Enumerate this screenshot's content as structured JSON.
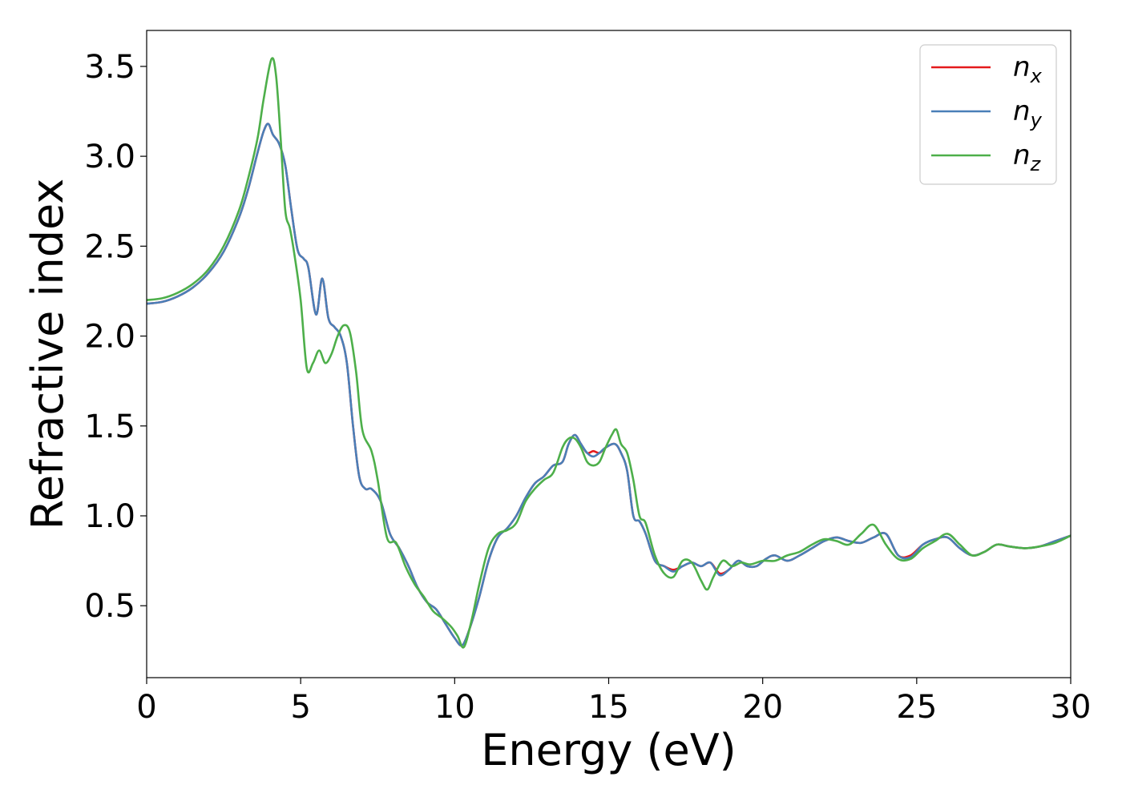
{
  "chart_data": {
    "type": "line",
    "title": "",
    "xlabel": "Energy (eV)",
    "ylabel": "Refractive index",
    "xlim": [
      0,
      30
    ],
    "ylim": [
      0.1,
      3.7
    ],
    "xticks": [
      0,
      5,
      10,
      15,
      20,
      25,
      30
    ],
    "yticks": [
      0.5,
      1.0,
      1.5,
      2.0,
      2.5,
      3.0,
      3.5
    ],
    "xtick_labels": [
      "0",
      "5",
      "10",
      "15",
      "20",
      "25",
      "30"
    ],
    "ytick_labels": [
      "0.5",
      "1.0",
      "1.5",
      "2.0",
      "2.5",
      "3.0",
      "3.5"
    ],
    "grid": false,
    "legend_position": "top-right",
    "series": [
      {
        "base": "n",
        "sub": "x",
        "color": "#e41a1c",
        "x": [
          0,
          0.5,
          1,
          1.5,
          2,
          2.5,
          3,
          3.3,
          3.6,
          3.8,
          3.95,
          4.1,
          4.3,
          4.5,
          4.7,
          4.9,
          5.1,
          5.25,
          5.5,
          5.7,
          5.9,
          6.1,
          6.3,
          6.5,
          6.7,
          6.9,
          7.1,
          7.3,
          7.6,
          7.9,
          8.2,
          8.5,
          8.8,
          9.1,
          9.4,
          9.7,
          10.0,
          10.25,
          10.5,
          10.8,
          11.1,
          11.4,
          11.7,
          12.0,
          12.3,
          12.6,
          12.9,
          13.2,
          13.5,
          13.7,
          13.9,
          14.1,
          14.3,
          14.5,
          14.7,
          14.9,
          15.2,
          15.4,
          15.6,
          15.8,
          16.0,
          16.2,
          16.5,
          16.8,
          17.1,
          17.4,
          17.7,
          18.0,
          18.3,
          18.6,
          18.9,
          19.2,
          19.5,
          19.8,
          20.1,
          20.4,
          20.8,
          21.2,
          21.6,
          22.0,
          22.4,
          22.8,
          23.2,
          23.6,
          24.0,
          24.4,
          24.8,
          25.2,
          25.6,
          26.0,
          26.4,
          26.8,
          27.2,
          27.6,
          28.0,
          28.5,
          29.0,
          29.5,
          30.0
        ],
        "y": [
          2.18,
          2.19,
          2.22,
          2.27,
          2.35,
          2.47,
          2.66,
          2.82,
          3.02,
          3.14,
          3.18,
          3.12,
          3.07,
          2.95,
          2.7,
          2.48,
          2.43,
          2.38,
          2.12,
          2.32,
          2.1,
          2.05,
          2.0,
          1.85,
          1.5,
          1.22,
          1.15,
          1.15,
          1.08,
          0.9,
          0.82,
          0.72,
          0.6,
          0.52,
          0.48,
          0.4,
          0.32,
          0.28,
          0.38,
          0.55,
          0.75,
          0.88,
          0.93,
          1.0,
          1.1,
          1.18,
          1.22,
          1.28,
          1.3,
          1.4,
          1.45,
          1.4,
          1.35,
          1.36,
          1.35,
          1.38,
          1.4,
          1.35,
          1.25,
          1.0,
          0.97,
          0.9,
          0.75,
          0.72,
          0.7,
          0.72,
          0.74,
          0.72,
          0.74,
          0.68,
          0.7,
          0.75,
          0.72,
          0.72,
          0.76,
          0.78,
          0.75,
          0.78,
          0.82,
          0.86,
          0.88,
          0.86,
          0.85,
          0.88,
          0.9,
          0.78,
          0.78,
          0.84,
          0.87,
          0.88,
          0.82,
          0.78,
          0.8,
          0.84,
          0.83,
          0.82,
          0.83,
          0.86,
          0.89
        ]
      },
      {
        "base": "n",
        "sub": "y",
        "color": "#4a7fb8",
        "x": [
          0,
          0.5,
          1,
          1.5,
          2,
          2.5,
          3,
          3.3,
          3.6,
          3.8,
          3.95,
          4.1,
          4.3,
          4.5,
          4.7,
          4.9,
          5.1,
          5.25,
          5.5,
          5.7,
          5.9,
          6.1,
          6.3,
          6.5,
          6.7,
          6.9,
          7.1,
          7.3,
          7.6,
          7.9,
          8.2,
          8.5,
          8.8,
          9.1,
          9.4,
          9.7,
          10.0,
          10.25,
          10.5,
          10.8,
          11.1,
          11.4,
          11.7,
          12.0,
          12.3,
          12.6,
          12.9,
          13.2,
          13.5,
          13.7,
          13.9,
          14.1,
          14.3,
          14.5,
          14.7,
          14.9,
          15.2,
          15.4,
          15.6,
          15.8,
          16.0,
          16.2,
          16.5,
          16.8,
          17.1,
          17.4,
          17.7,
          18.0,
          18.3,
          18.6,
          18.9,
          19.2,
          19.5,
          19.8,
          20.1,
          20.4,
          20.8,
          21.2,
          21.6,
          22.0,
          22.4,
          22.8,
          23.2,
          23.6,
          24.0,
          24.4,
          24.8,
          25.2,
          25.6,
          26.0,
          26.4,
          26.8,
          27.2,
          27.6,
          28.0,
          28.5,
          29.0,
          29.5,
          30.0
        ],
        "y": [
          2.18,
          2.19,
          2.22,
          2.27,
          2.35,
          2.47,
          2.66,
          2.82,
          3.02,
          3.14,
          3.18,
          3.12,
          3.07,
          2.95,
          2.7,
          2.48,
          2.43,
          2.38,
          2.12,
          2.32,
          2.1,
          2.05,
          2.0,
          1.85,
          1.5,
          1.22,
          1.15,
          1.15,
          1.08,
          0.9,
          0.82,
          0.72,
          0.6,
          0.52,
          0.48,
          0.4,
          0.32,
          0.28,
          0.38,
          0.55,
          0.75,
          0.88,
          0.93,
          1.0,
          1.1,
          1.18,
          1.22,
          1.28,
          1.3,
          1.4,
          1.45,
          1.4,
          1.35,
          1.33,
          1.35,
          1.38,
          1.4,
          1.35,
          1.25,
          1.0,
          0.97,
          0.9,
          0.75,
          0.72,
          0.69,
          0.72,
          0.74,
          0.72,
          0.74,
          0.67,
          0.7,
          0.75,
          0.72,
          0.72,
          0.76,
          0.78,
          0.75,
          0.78,
          0.82,
          0.86,
          0.88,
          0.86,
          0.85,
          0.88,
          0.9,
          0.78,
          0.77,
          0.84,
          0.87,
          0.88,
          0.82,
          0.78,
          0.8,
          0.84,
          0.83,
          0.82,
          0.83,
          0.86,
          0.89
        ]
      },
      {
        "base": "n",
        "sub": "z",
        "color": "#4daf4a",
        "x": [
          0,
          0.5,
          1,
          1.5,
          2,
          2.5,
          3,
          3.3,
          3.6,
          3.8,
          4.05,
          4.2,
          4.35,
          4.5,
          4.65,
          4.8,
          5.0,
          5.2,
          5.4,
          5.6,
          5.8,
          6.0,
          6.2,
          6.4,
          6.6,
          6.8,
          7.0,
          7.3,
          7.5,
          7.8,
          8.1,
          8.4,
          8.7,
          9.0,
          9.3,
          9.6,
          9.9,
          10.1,
          10.3,
          10.55,
          10.8,
          11.1,
          11.4,
          11.7,
          12.0,
          12.3,
          12.6,
          12.9,
          13.2,
          13.5,
          13.7,
          13.9,
          14.1,
          14.3,
          14.5,
          14.7,
          14.9,
          15.1,
          15.25,
          15.4,
          15.6,
          15.8,
          16.0,
          16.2,
          16.5,
          16.8,
          17.1,
          17.4,
          17.7,
          18.0,
          18.2,
          18.4,
          18.7,
          19.0,
          19.3,
          19.6,
          20.0,
          20.4,
          20.8,
          21.2,
          21.6,
          22.0,
          22.4,
          22.8,
          23.2,
          23.6,
          24.0,
          24.4,
          24.8,
          25.2,
          25.6,
          26.0,
          26.4,
          26.8,
          27.2,
          27.6,
          28.0,
          28.5,
          29.0,
          29.5,
          30.0
        ],
        "y": [
          2.2,
          2.21,
          2.24,
          2.29,
          2.37,
          2.5,
          2.7,
          2.88,
          3.1,
          3.32,
          3.54,
          3.45,
          3.1,
          2.7,
          2.6,
          2.45,
          2.2,
          1.82,
          1.85,
          1.92,
          1.85,
          1.9,
          2.0,
          2.06,
          2.02,
          1.8,
          1.48,
          1.36,
          1.2,
          0.88,
          0.85,
          0.72,
          0.62,
          0.55,
          0.47,
          0.43,
          0.38,
          0.33,
          0.27,
          0.42,
          0.62,
          0.82,
          0.9,
          0.92,
          0.96,
          1.08,
          1.15,
          1.2,
          1.24,
          1.38,
          1.43,
          1.43,
          1.38,
          1.3,
          1.28,
          1.3,
          1.38,
          1.45,
          1.48,
          1.4,
          1.35,
          1.2,
          1.0,
          0.96,
          0.78,
          0.68,
          0.66,
          0.75,
          0.74,
          0.64,
          0.59,
          0.66,
          0.75,
          0.72,
          0.74,
          0.73,
          0.75,
          0.75,
          0.78,
          0.8,
          0.84,
          0.87,
          0.86,
          0.84,
          0.9,
          0.95,
          0.84,
          0.76,
          0.76,
          0.82,
          0.86,
          0.9,
          0.84,
          0.78,
          0.8,
          0.84,
          0.83,
          0.82,
          0.83,
          0.85,
          0.89
        ]
      }
    ]
  }
}
